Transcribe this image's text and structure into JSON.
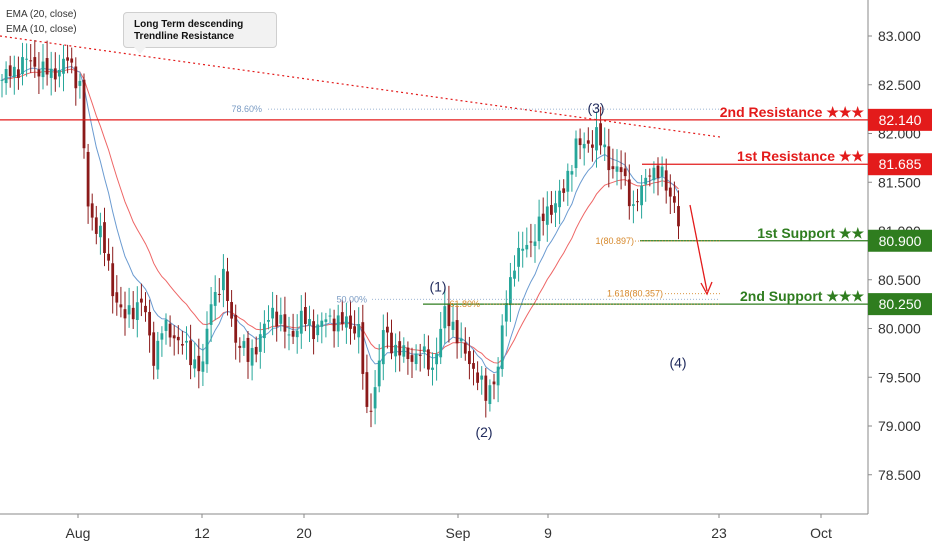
{
  "legend": [
    "EMA (20, close)",
    "EMA (10, close)"
  ],
  "callout": [
    "Long Term descending",
    "Trendline Resistance"
  ],
  "colors": {
    "up": "#26a69a",
    "down": "#8b1a1a",
    "resistance": "#e31b1b",
    "support": "#2f7d1f",
    "ema20": "#ee6666",
    "ema10": "#6b9bd1",
    "fib_blue": "#7b9cc4",
    "fib_orange": "#d6882b"
  },
  "chart_data": {
    "type": "candlestick",
    "y_ticks": [
      "83.000",
      "82.500",
      "82.000",
      "81.500",
      "81.000",
      "80.500",
      "80.000",
      "79.500",
      "79.000",
      "78.500"
    ],
    "x_ticks": [
      "Aug",
      "12",
      "20",
      "Sep",
      "9",
      "23",
      "Oct"
    ],
    "ylim": [
      78.25,
      83.35
    ],
    "levels": [
      {
        "label": "2nd Resistance ★★★",
        "value": "82.140",
        "price": 82.14,
        "kind": "resistance"
      },
      {
        "label": "1st Resistance ★★",
        "value": "81.685",
        "price": 81.685,
        "kind": "resistance"
      },
      {
        "label": "1st Support ★★",
        "value": "80.900",
        "price": 80.9,
        "kind": "support"
      },
      {
        "label": "2nd Support ★★★",
        "value": "80.250",
        "price": 80.25,
        "kind": "support"
      }
    ],
    "fib": [
      {
        "label": "78.60%",
        "price": 82.25,
        "color": "blue"
      },
      {
        "label": "50.00%",
        "price": 80.3,
        "color": "blue"
      },
      {
        "label": "61.80%",
        "price": 80.25,
        "color": "orange"
      },
      {
        "label": "1(80.897)",
        "price": 80.897,
        "color": "orange"
      },
      {
        "label": "1.618(80.357)",
        "price": 80.357,
        "color": "orange"
      }
    ],
    "waves": [
      {
        "label": "(1)",
        "price": 80.3
      },
      {
        "label": "(2)",
        "price": 79.05
      },
      {
        "label": "(3)",
        "price": 82.15
      },
      {
        "label": "(4)",
        "price": 79.95
      }
    ],
    "anchors": [
      {
        "i": 0,
        "p": 82.55
      },
      {
        "i": 6,
        "p": 82.75
      },
      {
        "i": 12,
        "p": 82.6
      },
      {
        "i": 16,
        "p": 82.75
      },
      {
        "i": 19,
        "p": 82.5
      },
      {
        "i": 21,
        "p": 81.2
      },
      {
        "i": 24,
        "p": 81.0
      },
      {
        "i": 27,
        "p": 80.4
      },
      {
        "i": 30,
        "p": 80.1
      },
      {
        "i": 34,
        "p": 80.3
      },
      {
        "i": 37,
        "p": 79.7
      },
      {
        "i": 39,
        "p": 80.0
      },
      {
        "i": 43,
        "p": 79.9
      },
      {
        "i": 46,
        "p": 79.7
      },
      {
        "i": 49,
        "p": 79.6
      },
      {
        "i": 51,
        "p": 80.3
      },
      {
        "i": 54,
        "p": 80.5
      },
      {
        "i": 57,
        "p": 79.9
      },
      {
        "i": 60,
        "p": 79.7
      },
      {
        "i": 63,
        "p": 79.9
      },
      {
        "i": 66,
        "p": 80.2
      },
      {
        "i": 70,
        "p": 79.9
      },
      {
        "i": 73,
        "p": 80.1
      },
      {
        "i": 76,
        "p": 80.0
      },
      {
        "i": 80,
        "p": 80.1
      },
      {
        "i": 84,
        "p": 80.05
      },
      {
        "i": 87,
        "p": 80.0
      },
      {
        "i": 89,
        "p": 79.1
      },
      {
        "i": 91,
        "p": 79.4
      },
      {
        "i": 93,
        "p": 79.95
      },
      {
        "i": 96,
        "p": 79.8
      },
      {
        "i": 99,
        "p": 79.7
      },
      {
        "i": 102,
        "p": 79.75
      },
      {
        "i": 105,
        "p": 79.6
      },
      {
        "i": 108,
        "p": 80.15
      },
      {
        "i": 110,
        "p": 80.05
      },
      {
        "i": 112,
        "p": 79.8
      },
      {
        "i": 115,
        "p": 79.6
      },
      {
        "i": 118,
        "p": 79.3
      },
      {
        "i": 121,
        "p": 79.6
      },
      {
        "i": 123,
        "p": 80.3
      },
      {
        "i": 125,
        "p": 80.7
      },
      {
        "i": 129,
        "p": 80.9
      },
      {
        "i": 133,
        "p": 81.2
      },
      {
        "i": 137,
        "p": 81.4
      },
      {
        "i": 140,
        "p": 81.9
      },
      {
        "i": 142,
        "p": 81.85
      },
      {
        "i": 145,
        "p": 82.0
      },
      {
        "i": 148,
        "p": 81.7
      },
      {
        "i": 151,
        "p": 81.6
      },
      {
        "i": 154,
        "p": 81.25
      },
      {
        "i": 156,
        "p": 81.4
      },
      {
        "i": 158,
        "p": 81.65
      },
      {
        "i": 161,
        "p": 81.55
      },
      {
        "i": 164,
        "p": 81.3
      },
      {
        "i": 165,
        "p": 81.05
      }
    ]
  }
}
